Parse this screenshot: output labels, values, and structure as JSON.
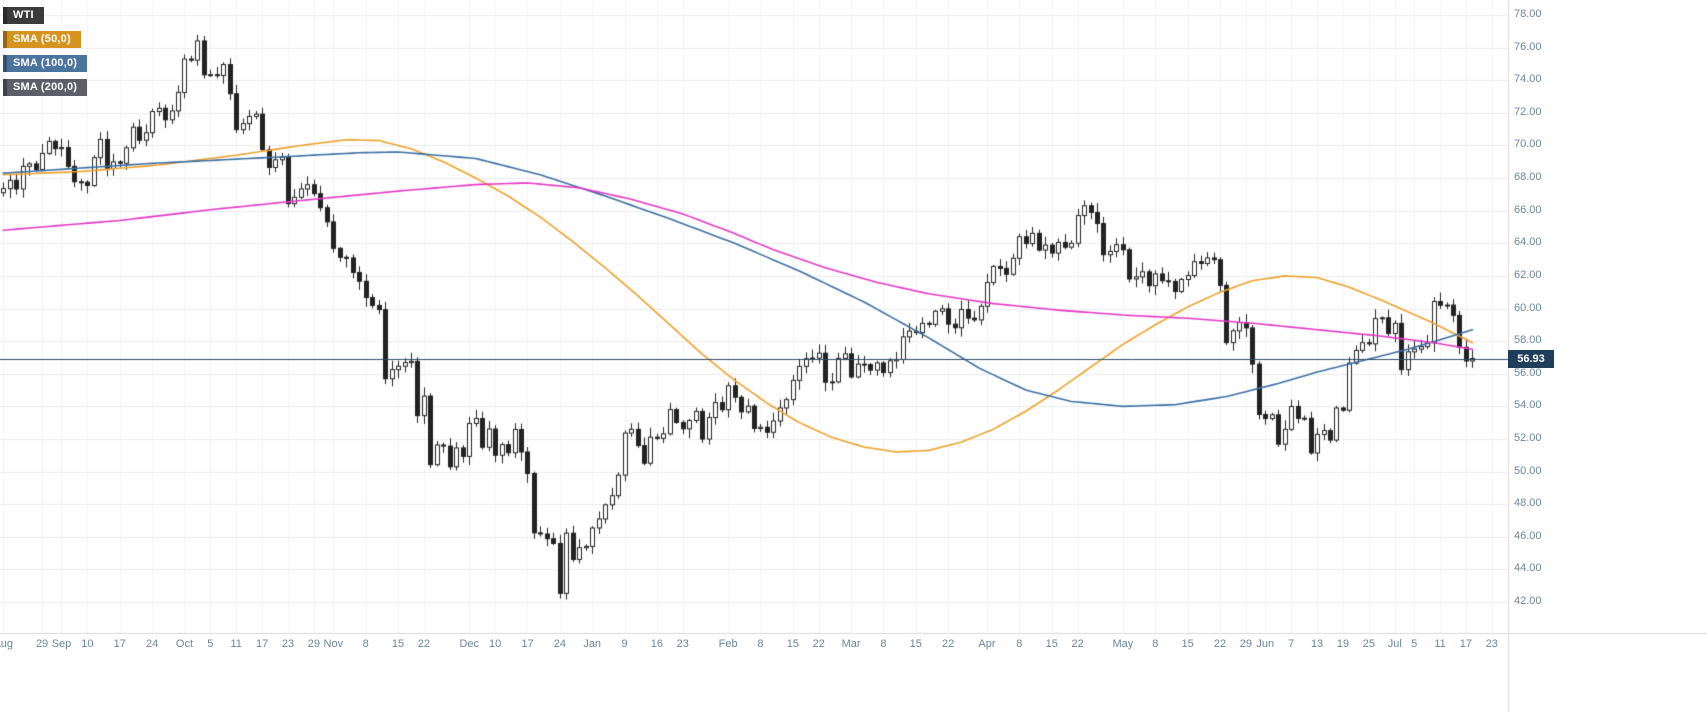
{
  "legend": [
    {
      "label": "WTI",
      "bg": "#3b3b3b"
    },
    {
      "label": "SMA (50,0)",
      "bg": "#d6941f"
    },
    {
      "label": "SMA (100,0)",
      "bg": "#4a749e"
    },
    {
      "label": "SMA (200,0)",
      "bg": "#5e5e68"
    }
  ],
  "axis_style": {
    "text_color": "#6a8699",
    "h_grid_color": "#ebebeb",
    "v_grid_color": "#f3f3f3",
    "border_color": "#d9d9d9",
    "tag_bg": "#1e3e5c",
    "tag_text_color": "#ffffff"
  },
  "chart_data": {
    "type": "candlestick",
    "symbol": "WTI",
    "timeframe": "daily",
    "price_tag": "56.93",
    "price_line": {
      "value": 56.93,
      "color": "#2c4b66"
    },
    "y_axis": {
      "min": 42,
      "max": 78,
      "step": 2,
      "labels": [
        "78.00",
        "76.00",
        "74.00",
        "72.00",
        "70.00",
        "68.00",
        "66.00",
        "64.00",
        "62.00",
        "60.00",
        "58.00",
        "56.00",
        "54.00",
        "52.00",
        "50.00",
        "48.00",
        "46.00",
        "44.00",
        "42.00"
      ]
    },
    "x_domain": 233,
    "x_ticks": [
      {
        "label": "Aug",
        "i": 0
      },
      {
        "label": "29",
        "i": 6
      },
      {
        "label": "Sep",
        "i": 9
      },
      {
        "label": "10",
        "i": 13
      },
      {
        "label": "17",
        "i": 18
      },
      {
        "label": "24",
        "i": 23
      },
      {
        "label": "Oct",
        "i": 28
      },
      {
        "label": "5",
        "i": 32
      },
      {
        "label": "11",
        "i": 36
      },
      {
        "label": "17",
        "i": 40
      },
      {
        "label": "23",
        "i": 44
      },
      {
        "label": "29",
        "i": 48
      },
      {
        "label": "Nov",
        "i": 51
      },
      {
        "label": "8",
        "i": 56
      },
      {
        "label": "15",
        "i": 61
      },
      {
        "label": "22",
        "i": 65
      },
      {
        "label": "Dec",
        "i": 72
      },
      {
        "label": "10",
        "i": 76
      },
      {
        "label": "17",
        "i": 81
      },
      {
        "label": "24",
        "i": 86
      },
      {
        "label": "Jan",
        "i": 91
      },
      {
        "label": "9",
        "i": 96
      },
      {
        "label": "16",
        "i": 101
      },
      {
        "label": "23",
        "i": 105
      },
      {
        "label": "Feb",
        "i": 112
      },
      {
        "label": "8",
        "i": 117
      },
      {
        "label": "15",
        "i": 122
      },
      {
        "label": "22",
        "i": 126
      },
      {
        "label": "Mar",
        "i": 131
      },
      {
        "label": "8",
        "i": 136
      },
      {
        "label": "15",
        "i": 141
      },
      {
        "label": "22",
        "i": 146
      },
      {
        "label": "Apr",
        "i": 152
      },
      {
        "label": "8",
        "i": 157
      },
      {
        "label": "15",
        "i": 162
      },
      {
        "label": "22",
        "i": 166
      },
      {
        "label": "May",
        "i": 173
      },
      {
        "label": "8",
        "i": 178
      },
      {
        "label": "15",
        "i": 183
      },
      {
        "label": "22",
        "i": 188
      },
      {
        "label": "29",
        "i": 192
      },
      {
        "label": "Jun",
        "i": 195
      },
      {
        "label": "7",
        "i": 199
      },
      {
        "label": "13",
        "i": 203
      },
      {
        "label": "19",
        "i": 207
      },
      {
        "label": "25",
        "i": 211
      },
      {
        "label": "Jul",
        "i": 215
      },
      {
        "label": "5",
        "i": 218
      },
      {
        "label": "11",
        "i": 222
      },
      {
        "label": "17",
        "i": 226
      },
      {
        "label": "23",
        "i": 230
      }
    ],
    "closes": [
      67.35,
      67.86,
      67.33,
      68.72,
      68.87,
      68.53,
      69.51,
      70.25,
      69.8,
      69.87,
      68.72,
      67.77,
      67.75,
      67.54,
      69.25,
      70.37,
      68.59,
      68.99,
      68.91,
      69.85,
      71.12,
      70.32,
      70.78,
      72.08,
      72.28,
      71.57,
      72.12,
      73.25,
      75.3,
      75.23,
      76.41,
      74.33,
      74.34,
      74.29,
      74.96,
      73.17,
      70.97,
      71.34,
      71.78,
      71.92,
      69.75,
      68.65,
      69.12,
      69.28,
      66.43,
      66.82,
      67.33,
      67.59,
      67.04,
      66.18,
      65.31,
      63.69,
      63.14,
      63.1,
      62.21,
      61.67,
      60.67,
      60.19,
      59.93,
      55.69,
      56.25,
      56.46,
      56.68,
      56.76,
      53.43,
      54.63,
      50.42,
      51.63,
      51.56,
      50.29,
      51.45,
      50.93,
      52.95,
      53.25,
      51.49,
      52.61,
      51.0,
      51.65,
      51.15,
      52.58,
      51.2,
      49.88,
      46.24,
      46.17,
      45.88,
      45.59,
      42.53,
      46.22,
      44.61,
      45.33,
      45.41,
      46.54,
      47.09,
      47.96,
      48.52,
      49.78,
      52.36,
      52.59,
      51.59,
      50.51,
      52.11,
      52.04,
      52.31,
      53.8,
      53.01,
      52.62,
      53.13,
      53.69,
      51.99,
      53.31,
      54.23,
      53.79,
      55.26,
      54.56,
      53.66,
      54.01,
      52.64,
      52.72,
      52.41,
      53.1,
      53.9,
      54.41,
      55.59,
      56.45,
      56.92,
      56.96,
      57.26,
      55.48,
      55.5,
      56.94,
      57.22,
      55.8,
      56.59,
      56.56,
      56.22,
      56.66,
      56.07,
      56.79,
      56.87,
      58.26,
      58.61,
      58.52,
      59.09,
      59.03,
      59.83,
      59.98,
      59.04,
      58.82,
      59.94,
      59.41,
      59.3,
      60.14,
      61.59,
      62.58,
      62.46,
      62.1,
      63.08,
      64.4,
      63.98,
      64.61,
      63.58,
      63.89,
      63.4,
      64.05,
      63.76,
      64.0,
      65.7,
      66.3,
      65.89,
      65.21,
      63.3,
      63.5,
      63.91,
      63.6,
      61.81,
      61.94,
      62.25,
      61.4,
      62.12,
      61.7,
      61.66,
      61.04,
      61.78,
      62.02,
      62.87,
      62.76,
      63.1,
      62.99,
      61.42,
      57.91,
      58.63,
      59.14,
      58.81,
      56.59,
      53.5,
      53.25,
      53.48,
      51.68,
      52.59,
      53.99,
      53.26,
      53.27,
      51.14,
      52.28,
      52.51,
      51.93,
      53.9,
      53.76,
      56.65,
      57.43,
      57.9,
      57.83,
      59.38,
      59.43,
      58.47,
      59.09,
      56.25,
      57.34,
      57.51,
      57.66,
      57.9,
      60.43,
      60.2,
      60.21,
      59.58,
      57.62,
      56.78,
      56.93
    ],
    "candle_style": {
      "up_fill": "#ffffff",
      "down_fill": "#222222",
      "stroke": "#222222"
    },
    "sma": [
      {
        "name": "SMA (50,0)",
        "period": 50,
        "color": "#f0a028",
        "points": [
          [
            0,
            68.2
          ],
          [
            12,
            68.4
          ],
          [
            24,
            68.8
          ],
          [
            36,
            69.4
          ],
          [
            46,
            70.0
          ],
          [
            53,
            70.35
          ],
          [
            58,
            70.3
          ],
          [
            63,
            69.8
          ],
          [
            68,
            69.0
          ],
          [
            73,
            68.0
          ],
          [
            78,
            66.9
          ],
          [
            83,
            65.6
          ],
          [
            88,
            64.1
          ],
          [
            93,
            62.5
          ],
          [
            98,
            60.8
          ],
          [
            103,
            59.0
          ],
          [
            108,
            57.2
          ],
          [
            113,
            55.6
          ],
          [
            118,
            54.2
          ],
          [
            123,
            53.0
          ],
          [
            128,
            52.1
          ],
          [
            133,
            51.5
          ],
          [
            138,
            51.2
          ],
          [
            143,
            51.3
          ],
          [
            148,
            51.8
          ],
          [
            153,
            52.6
          ],
          [
            158,
            53.7
          ],
          [
            163,
            55.0
          ],
          [
            168,
            56.4
          ],
          [
            173,
            57.8
          ],
          [
            178,
            59.0
          ],
          [
            183,
            60.1
          ],
          [
            188,
            61.0
          ],
          [
            193,
            61.7
          ],
          [
            198,
            62.0
          ],
          [
            203,
            61.9
          ],
          [
            208,
            61.3
          ],
          [
            213,
            60.5
          ],
          [
            217,
            59.8
          ],
          [
            221,
            59.1
          ],
          [
            224,
            58.5
          ],
          [
            227,
            57.9
          ]
        ]
      },
      {
        "name": "SMA (100,0)",
        "period": 100,
        "color": "#3a6fa5",
        "points": [
          [
            0,
            68.3
          ],
          [
            23,
            68.9
          ],
          [
            43,
            69.3
          ],
          [
            55,
            69.55
          ],
          [
            61,
            69.6
          ],
          [
            73,
            69.2
          ],
          [
            83,
            68.2
          ],
          [
            93,
            66.9
          ],
          [
            103,
            65.5
          ],
          [
            113,
            64.0
          ],
          [
            123,
            62.3
          ],
          [
            133,
            60.4
          ],
          [
            143,
            58.2
          ],
          [
            151,
            56.3
          ],
          [
            158,
            55.0
          ],
          [
            165,
            54.3
          ],
          [
            173,
            54.0
          ],
          [
            181,
            54.1
          ],
          [
            189,
            54.6
          ],
          [
            197,
            55.4
          ],
          [
            203,
            56.1
          ],
          [
            211,
            56.9
          ],
          [
            217,
            57.5
          ],
          [
            223,
            58.2
          ],
          [
            227,
            58.7
          ]
        ]
      },
      {
        "name": "SMA (200,0)",
        "period": 200,
        "color": "#e637c8",
        "points": [
          [
            0,
            64.8
          ],
          [
            18,
            65.4
          ],
          [
            33,
            66.1
          ],
          [
            48,
            66.7
          ],
          [
            61,
            67.2
          ],
          [
            73,
            67.6
          ],
          [
            81,
            67.7
          ],
          [
            89,
            67.4
          ],
          [
            97,
            66.7
          ],
          [
            105,
            65.8
          ],
          [
            113,
            64.6
          ],
          [
            119,
            63.6
          ],
          [
            127,
            62.5
          ],
          [
            135,
            61.6
          ],
          [
            143,
            60.9
          ],
          [
            153,
            60.3
          ],
          [
            163,
            59.9
          ],
          [
            173,
            59.6
          ],
          [
            183,
            59.4
          ],
          [
            193,
            59.1
          ],
          [
            203,
            58.7
          ],
          [
            213,
            58.3
          ],
          [
            221,
            57.9
          ],
          [
            227,
            57.5
          ]
        ]
      }
    ]
  }
}
